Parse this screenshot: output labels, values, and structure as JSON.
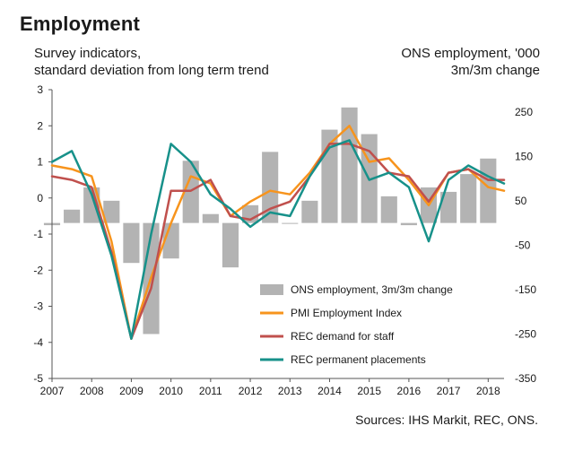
{
  "chart_data": {
    "type": "bar+line",
    "title": "Employment",
    "left_axis_label": [
      "Survey indicators,",
      "standard deviation from long term trend"
    ],
    "right_axis_label": [
      "ONS employment, '000",
      "3m/3m change"
    ],
    "source": "Sources: IHS Markit, REC, ONS.",
    "x_ticks": [
      "2007",
      "2008",
      "2009",
      "2010",
      "2011",
      "2012",
      "2013",
      "2014",
      "2015",
      "2016",
      "2017",
      "2018"
    ],
    "x_range": [
      2007.0,
      2018.4
    ],
    "left_ylim": [
      -5,
      3
    ],
    "left_ticks": [
      3,
      2,
      1,
      0,
      -1,
      -2,
      -3,
      -4,
      -5
    ],
    "right_ylim": [
      -350,
      300
    ],
    "right_ticks": [
      250,
      150,
      50,
      -50,
      -150,
      -250,
      -350
    ],
    "legend": [
      "ONS employment, 3m/3m change",
      "PMI Employment Index",
      "REC demand for staff",
      "REC permanent placements"
    ],
    "colors": {
      "ons": "#b3b3b3",
      "pmi": "#f7941d",
      "rec_demand": "#c0504d",
      "rec_placements": "#17918a"
    },
    "series": [
      {
        "name": "ONS employment, 3m/3m change",
        "kind": "bar",
        "axis": "right",
        "x": [
          2007.0,
          2007.5,
          2008.0,
          2008.5,
          2009.0,
          2009.5,
          2010.0,
          2010.5,
          2011.0,
          2011.5,
          2012.0,
          2012.5,
          2013.0,
          2013.5,
          2014.0,
          2014.5,
          2015.0,
          2015.5,
          2016.0,
          2016.5,
          2017.0,
          2017.5,
          2018.0
        ],
        "values": [
          -5,
          30,
          80,
          50,
          -90,
          -250,
          -80,
          140,
          20,
          -100,
          40,
          160,
          0,
          50,
          210,
          260,
          200,
          60,
          -5,
          80,
          70,
          110,
          145
        ]
      },
      {
        "name": "PMI Employment Index",
        "kind": "line",
        "axis": "left",
        "x": [
          2007.0,
          2007.5,
          2008.0,
          2008.5,
          2009.0,
          2009.5,
          2010.0,
          2010.5,
          2011.0,
          2011.5,
          2012.0,
          2012.5,
          2013.0,
          2013.5,
          2014.0,
          2014.5,
          2015.0,
          2015.5,
          2016.0,
          2016.5,
          2017.0,
          2017.5,
          2018.0,
          2018.4
        ],
        "values": [
          0.9,
          0.8,
          0.6,
          -1.2,
          -3.9,
          -2.2,
          -0.7,
          0.6,
          0.4,
          -0.5,
          -0.1,
          0.2,
          0.1,
          0.7,
          1.5,
          2.0,
          1.0,
          1.1,
          0.5,
          -0.2,
          0.7,
          0.8,
          0.3,
          0.2
        ]
      },
      {
        "name": "REC demand for staff",
        "kind": "line",
        "axis": "left",
        "x": [
          2007.0,
          2007.5,
          2008.0,
          2008.5,
          2009.0,
          2009.5,
          2010.0,
          2010.5,
          2011.0,
          2011.5,
          2012.0,
          2012.5,
          2013.0,
          2013.5,
          2014.0,
          2014.5,
          2015.0,
          2015.5,
          2016.0,
          2016.5,
          2017.0,
          2017.5,
          2018.0,
          2018.4
        ],
        "values": [
          0.6,
          0.5,
          0.3,
          -1.5,
          -3.9,
          -2.5,
          0.2,
          0.2,
          0.5,
          -0.5,
          -0.6,
          -0.3,
          -0.1,
          0.6,
          1.5,
          1.5,
          1.3,
          0.7,
          0.6,
          -0.1,
          0.7,
          0.8,
          0.5,
          0.5
        ]
      },
      {
        "name": "REC permanent placements",
        "kind": "line",
        "axis": "left",
        "x": [
          2007.0,
          2007.5,
          2008.0,
          2008.5,
          2009.0,
          2009.5,
          2010.0,
          2010.5,
          2011.0,
          2011.5,
          2012.0,
          2012.5,
          2013.0,
          2013.5,
          2014.0,
          2014.5,
          2015.0,
          2015.5,
          2016.0,
          2016.5,
          2017.0,
          2017.5,
          2018.0,
          2018.4
        ],
        "values": [
          1.0,
          1.3,
          0.1,
          -1.6,
          -3.9,
          -1.0,
          1.5,
          1.0,
          0.1,
          -0.3,
          -0.8,
          -0.4,
          -0.5,
          0.6,
          1.4,
          1.6,
          0.5,
          0.7,
          0.3,
          -1.2,
          0.5,
          0.9,
          0.6,
          0.4
        ]
      }
    ]
  }
}
